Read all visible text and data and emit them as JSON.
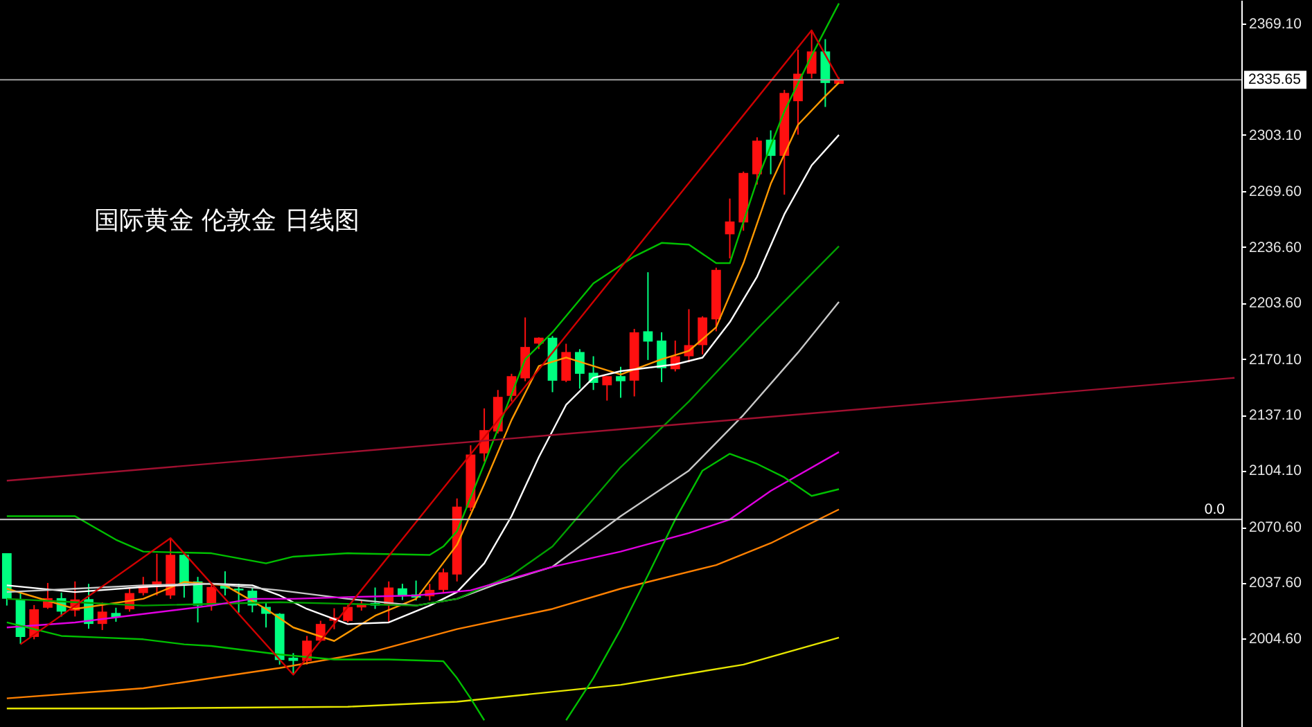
{
  "chart_data": {
    "type": "candlestick",
    "title": "国际黄金 伦敦金 日线图",
    "tick_labels": "y",
    "categories": [
      null,
      null,
      null,
      null,
      null,
      null,
      null,
      null,
      null,
      null,
      null,
      null,
      null,
      null,
      null,
      null,
      null,
      null,
      null,
      null,
      null,
      null,
      null,
      null,
      null,
      null,
      null,
      null,
      null,
      null,
      null,
      null,
      null,
      null,
      null,
      null,
      null,
      null,
      null,
      null,
      null,
      null,
      null,
      null,
      null,
      null,
      null,
      null,
      null,
      null,
      null,
      null,
      null,
      null,
      null,
      null,
      null,
      null,
      null,
      null,
      null,
      null,
      null,
      null,
      null,
      null,
      null,
      null,
      null,
      null,
      null,
      null,
      null,
      null,
      null,
      null,
      null,
      null,
      null,
      null,
      null,
      null,
      null,
      null,
      null,
      null,
      null,
      null,
      null,
      null,
      null
    ],
    "ohlc": [
      [
        2055,
        2055,
        2024,
        2028
      ],
      [
        2027.6,
        2031.7,
        2001.3,
        2005.4
      ],
      [
        2005.4,
        2024.3,
        2004,
        2021.8
      ],
      [
        2022.7,
        2037.4,
        2022,
        2028.4
      ],
      [
        2028.4,
        2031.7,
        2017.5,
        2020.4
      ],
      [
        2021,
        2038.3,
        2017.5,
        2027.6
      ],
      [
        2027.8,
        2036.9,
        2010.3,
        2013.1
      ],
      [
        2013.1,
        2025.9,
        2009.5,
        2020.4
      ],
      [
        2019.6,
        2022.7,
        2014.4,
        2016.9
      ],
      [
        2021.8,
        2034.2,
        2020.4,
        2031.4
      ],
      [
        2031.4,
        2041,
        2030,
        2036.1
      ],
      [
        2035.6,
        2054.7,
        2030,
        2038.3
      ],
      [
        2030,
        2063.5,
        2028,
        2054.1
      ],
      [
        2054.1,
        2054.7,
        2028.7,
        2036.9
      ],
      [
        2038.3,
        2041,
        2014,
        2024
      ],
      [
        2024,
        2036.9,
        2021,
        2035
      ],
      [
        2036,
        2044.3,
        2030,
        2034
      ],
      [
        2034,
        2036.9,
        2019.8,
        2033
      ],
      [
        2032.8,
        2034.7,
        2020,
        2024
      ],
      [
        2023.2,
        2026,
        2011,
        2019.1
      ],
      [
        2019.1,
        2019.5,
        1989,
        1991.7
      ],
      [
        1993.1,
        1995.8,
        1983.5,
        1991.2
      ],
      [
        1991.2,
        2006,
        1989,
        2003.2
      ],
      [
        2003.2,
        2015,
        2002.7,
        2013.1
      ],
      [
        2015,
        2022.4,
        2010,
        2016.9
      ],
      [
        2014.9,
        2024.5,
        2014,
        2023.2
      ],
      [
        2022.9,
        2027.3,
        2021,
        2025.1
      ],
      [
        2025.5,
        2034.7,
        2022,
        2024
      ],
      [
        2024.5,
        2038.3,
        2013.6,
        2034.7
      ],
      [
        2034.2,
        2036.9,
        2027.3,
        2030
      ],
      [
        2030.6,
        2038.8,
        2027,
        2028.7
      ],
      [
        2029.5,
        2036.9,
        2027,
        2033.3
      ],
      [
        2033.3,
        2045.9,
        2031.4,
        2043.7
      ],
      [
        2042.4,
        2087.5,
        2038.3,
        2082.6
      ],
      [
        2082,
        2119,
        2080,
        2113.5
      ],
      [
        2114.2,
        2140.9,
        2109.4,
        2128
      ],
      [
        2127.2,
        2151.8,
        2126,
        2147.7
      ],
      [
        2148.3,
        2161.4,
        2145,
        2160
      ],
      [
        2158.7,
        2194.8,
        2157,
        2177.3
      ],
      [
        2179.3,
        2183,
        2176,
        2182.8
      ],
      [
        2182.8,
        2183.8,
        2150.5,
        2157.3
      ],
      [
        2157.3,
        2179.2,
        2156.5,
        2174.3
      ],
      [
        2174.3,
        2176,
        2152.6,
        2161.4
      ],
      [
        2162,
        2171.8,
        2151.8,
        2156
      ],
      [
        2154.6,
        2160,
        2145.5,
        2160
      ],
      [
        2160,
        2165.5,
        2147.2,
        2157
      ],
      [
        2157.3,
        2188,
        2148,
        2186
      ],
      [
        2186.6,
        2221.6,
        2169.6,
        2180.5
      ],
      [
        2181.1,
        2186,
        2156.5,
        2164.7
      ],
      [
        2164.1,
        2181.1,
        2162.8,
        2171.8
      ],
      [
        2171.8,
        2199.7,
        2168.2,
        2178.4
      ],
      [
        2178.4,
        2195.5,
        2172.9,
        2194.8
      ],
      [
        2193.7,
        2224.3,
        2186.6,
        2223
      ],
      [
        2244.1,
        2265.3,
        2229.8,
        2251.7
      ],
      [
        2251.1,
        2281.3,
        2246.2,
        2280.5
      ],
      [
        2279.7,
        2301.6,
        2273.6,
        2299.6
      ],
      [
        2300.2,
        2305.7,
        2279.7,
        2290.6
      ],
      [
        2290.6,
        2329.7,
        2267.6,
        2327.9
      ],
      [
        2323,
        2353.5,
        2303.2,
        2339.3
      ],
      [
        2339.3,
        2365.3,
        2336.5,
        2352.5
      ],
      [
        2352.5,
        2359.8,
        2319.6,
        2333.8
      ],
      [
        2333.3,
        2337.1,
        2333.3,
        2335.65
      ],
      null,
      null,
      null,
      null,
      null,
      null,
      null,
      null,
      null,
      null,
      null,
      null,
      null,
      null,
      null,
      null,
      null,
      null,
      null,
      null,
      null,
      null,
      null,
      null,
      null,
      null,
      null,
      null,
      null
    ],
    "colors": [
      "#00ff80",
      "#00ff80",
      "#ff1010",
      "#ff1010",
      "#00ff80",
      "#ff1010",
      "#00ff80",
      "#ff1010",
      "#00ff80",
      "#ff1010",
      "#ff1010",
      "#ff1010",
      "#ff1010",
      "#00ff80",
      "#00ff80",
      "#ff1010",
      "#00ff80",
      "#00ff80",
      "#00ff80",
      "#00ff80",
      "#00ff80",
      "#00ff80",
      "#ff1010",
      "#ff1010",
      "#ff1010",
      "#ff1010",
      "#ff1010",
      "#00ff80",
      "#ff1010",
      "#00ff80",
      "#00ff80",
      "#ff1010",
      "#ff1010",
      "#ff1010",
      "#ff1010",
      "#ff1010",
      "#ff1010",
      "#ff1010",
      "#ff1010",
      "#ff1010",
      "#00ff80",
      "#ff1010",
      "#00ff80",
      "#00ff80",
      "#ff1010",
      "#00ff80",
      "#ff1010",
      "#00ff80",
      "#00ff80",
      "#ff1010",
      "#ff1010",
      "#ff1010",
      "#ff1010",
      "#ff1010",
      "#ff1010",
      "#ff1010",
      "#00ff80",
      "#ff1010",
      "#ff1010",
      "#ff1010",
      "#00ff80",
      "#ff1010",
      null,
      null,
      null,
      null,
      null,
      null,
      null,
      null,
      null,
      null,
      null,
      null,
      null,
      null,
      null,
      null,
      null,
      null,
      null,
      null,
      null,
      null,
      null,
      null,
      null,
      null,
      null,
      null,
      null
    ],
    "series": [
      {
        "type": "line",
        "color": "#ff9900",
        "values": [
          2034,
          null,
          null,
          null,
          null,
          2022,
          null,
          null,
          null,
          null,
          2028,
          null,
          null,
          2038,
          null,
          null,
          2036,
          null,
          null,
          2022,
          null,
          2011,
          null,
          null,
          2003,
          null,
          null,
          2018,
          null,
          null,
          2028,
          null,
          null,
          2060,
          null,
          2096,
          null,
          2134,
          null,
          2166,
          null,
          2171,
          null,
          2166,
          null,
          2161,
          null,
          null,
          2170,
          null,
          2175,
          null,
          2189,
          null,
          2227,
          null,
          2274,
          null,
          2309,
          null,
          2326,
          2334,
          null,
          null,
          null,
          null,
          null,
          null,
          null,
          null,
          null,
          null,
          null,
          null,
          null,
          null,
          null,
          null,
          null,
          null,
          null,
          null,
          null,
          null,
          null,
          null,
          null,
          null,
          null,
          null,
          null
        ]
      },
      {
        "type": "line",
        "color": "#ffffff",
        "values": [
          2036,
          null,
          null,
          null,
          null,
          2032,
          null,
          null,
          null,
          null,
          2035,
          null,
          null,
          null,
          null,
          2037,
          null,
          null,
          2036,
          null,
          2030,
          null,
          2022,
          null,
          null,
          2013,
          null,
          null,
          2014,
          null,
          null,
          2024,
          null,
          2032,
          null,
          2049,
          null,
          2077,
          null,
          2112,
          null,
          2143,
          null,
          2159,
          null,
          2163,
          null,
          null,
          null,
          2167,
          null,
          2171,
          null,
          2192,
          null,
          2219,
          null,
          2256,
          null,
          2285,
          null,
          2303,
          null,
          null,
          null,
          null,
          null,
          null,
          null,
          null,
          null,
          null,
          null,
          null,
          null,
          null,
          null,
          null,
          null,
          null,
          null,
          null,
          null,
          null,
          null,
          null,
          null,
          null,
          null,
          null,
          null
        ]
      },
      {
        "type": "line",
        "color": "#c8c8c8",
        "values": [
          2032,
          null,
          null,
          null,
          null,
          2034,
          null,
          null,
          null,
          null,
          2036,
          null,
          null,
          null,
          null,
          2037,
          null,
          null,
          null,
          null,
          2033,
          null,
          null,
          null,
          null,
          2028,
          null,
          null,
          null,
          null,
          2024,
          null,
          null,
          2028,
          null,
          null,
          2037,
          null,
          null,
          null,
          2047,
          null,
          null,
          null,
          null,
          2077,
          null,
          null,
          null,
          null,
          2104,
          null,
          null,
          null,
          2137,
          null,
          null,
          null,
          2174,
          null,
          null,
          2204,
          null,
          null,
          null,
          null,
          null,
          null,
          null,
          null,
          null,
          null,
          null,
          null,
          null,
          null,
          null,
          null,
          null,
          null,
          null,
          null,
          null,
          null,
          null,
          null,
          null,
          null,
          null,
          null,
          null
        ]
      },
      {
        "type": "line",
        "color": "#00a000",
        "values": [
          2028,
          null,
          null,
          null,
          null,
          2026,
          null,
          null,
          null,
          null,
          2024,
          null,
          null,
          null,
          null,
          null,
          null,
          null,
          null,
          null,
          2026,
          null,
          null,
          null,
          null,
          null,
          null,
          null,
          null,
          null,
          2024,
          null,
          null,
          2028,
          null,
          null,
          null,
          2042,
          null,
          null,
          2059,
          null,
          null,
          null,
          null,
          2106,
          null,
          null,
          null,
          null,
          2145,
          null,
          null,
          null,
          null,
          2188,
          null,
          null,
          null,
          null,
          null,
          2237,
          null,
          null,
          null,
          null,
          null,
          null,
          null,
          null,
          null,
          null,
          null,
          null,
          null,
          null,
          null,
          null,
          null,
          null,
          null,
          null,
          null,
          null,
          null,
          null,
          null,
          null,
          null,
          null,
          null
        ]
      },
      {
        "type": "line",
        "color": "#e000e0",
        "values": [
          2011,
          null,
          null,
          null,
          null,
          2014,
          null,
          null,
          null,
          null,
          2019,
          null,
          null,
          null,
          null,
          2024,
          null,
          null,
          2028,
          null,
          null,
          2028,
          null,
          null,
          null,
          2029,
          null,
          null,
          null,
          null,
          2030,
          null,
          null,
          null,
          2033,
          null,
          null,
          null,
          null,
          null,
          2047,
          null,
          null,
          null,
          null,
          2056,
          null,
          null,
          null,
          null,
          2067,
          null,
          null,
          2075,
          null,
          null,
          2092,
          null,
          null,
          null,
          null,
          2115,
          null,
          null,
          null,
          null,
          null,
          null,
          null,
          null,
          null,
          null,
          null,
          null,
          null,
          null,
          null,
          null,
          null,
          null,
          null,
          null,
          null,
          null,
          null,
          null,
          null,
          null,
          null,
          null,
          null
        ]
      },
      {
        "type": "line",
        "color": "#ff8000",
        "values": [
          1969,
          null,
          null,
          null,
          null,
          null,
          null,
          null,
          null,
          null,
          1975,
          null,
          null,
          null,
          null,
          null,
          null,
          null,
          null,
          null,
          1987,
          null,
          null,
          null,
          null,
          null,
          null,
          1997,
          null,
          null,
          null,
          null,
          null,
          2010,
          null,
          null,
          null,
          null,
          null,
          null,
          2022,
          null,
          null,
          null,
          null,
          2034,
          null,
          null,
          null,
          null,
          null,
          null,
          2048,
          null,
          null,
          null,
          2061,
          null,
          null,
          null,
          null,
          2081,
          null,
          null,
          null,
          null,
          null,
          null,
          null,
          null,
          null,
          null,
          null,
          null,
          null,
          null,
          null,
          null,
          null,
          null,
          null,
          null,
          null,
          null,
          null,
          null,
          null,
          null,
          null,
          null,
          null
        ]
      },
      {
        "type": "line",
        "color": "#e6e600",
        "values": [
          1963,
          null,
          null,
          null,
          null,
          null,
          null,
          null,
          null,
          null,
          1963,
          null,
          null,
          null,
          null,
          null,
          null,
          null,
          null,
          null,
          null,
          null,
          null,
          null,
          null,
          1964,
          null,
          null,
          null,
          null,
          null,
          null,
          null,
          1967,
          null,
          null,
          null,
          null,
          null,
          null,
          null,
          null,
          null,
          null,
          null,
          1977,
          null,
          null,
          null,
          null,
          null,
          null,
          null,
          null,
          1989,
          null,
          null,
          null,
          null,
          null,
          null,
          2005,
          null,
          null,
          null,
          null,
          null,
          null,
          null,
          null,
          null,
          null,
          null,
          null,
          null,
          null,
          null,
          null,
          null,
          null,
          null,
          null,
          null,
          null,
          null,
          null,
          null,
          null,
          null,
          null,
          null
        ]
      },
      {
        "type": "line",
        "color": "#00c000",
        "values": [
          2077,
          null,
          null,
          null,
          null,
          2077,
          null,
          null,
          2063,
          null,
          2056,
          null,
          null,
          null,
          null,
          2055,
          null,
          null,
          null,
          2049,
          null,
          2053,
          null,
          null,
          null,
          2055,
          null,
          null,
          null,
          null,
          null,
          2054,
          2059,
          2068,
          null,
          2108,
          null,
          null,
          2170,
          null,
          2186,
          null,
          null,
          2215,
          null,
          null,
          2231,
          null,
          2239,
          null,
          2238,
          null,
          2227,
          2227,
          null,
          2276,
          null,
          2317,
          null,
          2350,
          null,
          2381,
          null,
          null,
          null,
          null,
          null,
          null,
          null,
          null,
          null,
          null,
          null,
          null,
          null,
          null,
          null,
          null,
          null,
          null,
          null,
          null,
          null,
          null,
          null,
          null,
          null,
          null,
          null,
          null,
          null
        ]
      },
      {
        "type": "line",
        "color": "#00c000",
        "values": [
          2014,
          null,
          2010,
          null,
          2006,
          null,
          null,
          2005,
          null,
          null,
          2004,
          null,
          null,
          2001,
          null,
          2000,
          null,
          null,
          null,
          null,
          1995,
          null,
          null,
          null,
          1992,
          null,
          null,
          null,
          1992,
          null,
          null,
          null,
          1991,
          1981,
          1969,
          1956,
          null,
          null,
          null,
          null,
          null,
          null,
          null,
          null,
          null,
          null,
          null,
          null,
          null,
          null,
          null,
          null,
          null,
          null,
          null,
          null,
          null,
          null,
          null,
          null,
          null,
          null,
          null,
          null,
          null,
          null,
          null,
          null,
          null,
          null,
          null,
          null,
          null,
          null,
          null,
          null,
          null,
          null,
          null,
          null,
          null,
          null,
          null,
          null,
          null,
          null,
          null,
          null,
          null,
          null,
          null
        ]
      },
      {
        "type": "line",
        "color": "#00c000",
        "values": [
          null,
          null,
          null,
          null,
          null,
          null,
          null,
          null,
          null,
          null,
          null,
          null,
          null,
          null,
          null,
          null,
          null,
          null,
          null,
          null,
          null,
          null,
          null,
          null,
          null,
          null,
          null,
          null,
          null,
          null,
          null,
          null,
          null,
          null,
          null,
          null,
          null,
          null,
          null,
          null,
          null,
          1956,
          null,
          1981,
          null,
          2010,
          null,
          2042,
          null,
          2075,
          null,
          2104,
          null,
          2114,
          null,
          2108,
          null,
          2100,
          null,
          2089,
          null,
          2093,
          null,
          null,
          null,
          null,
          null,
          null,
          null,
          null,
          null,
          null,
          null,
          null,
          null,
          null,
          null,
          null,
          null,
          null,
          null,
          null,
          null,
          null,
          null,
          null,
          null,
          null,
          null,
          null,
          null
        ]
      },
      {
        "type": "line",
        "color": "#d00000",
        "values": [
          null,
          2001,
          null,
          null,
          null,
          null,
          null,
          null,
          null,
          null,
          null,
          null,
          2064,
          null,
          null,
          null,
          null,
          null,
          null,
          null,
          null,
          1983,
          null,
          null,
          null,
          null,
          null,
          null,
          null,
          null,
          null,
          null,
          null,
          null,
          null,
          null,
          null,
          null,
          null,
          null,
          null,
          null,
          null,
          null,
          null,
          null,
          null,
          null,
          null,
          null,
          null,
          null,
          null,
          null,
          null,
          null,
          null,
          null,
          null,
          2365,
          null,
          2336,
          null,
          null,
          null,
          null,
          null,
          null,
          null,
          null,
          null,
          null,
          null,
          null,
          null,
          null,
          null,
          null,
          null,
          null,
          null,
          null,
          null,
          null,
          null,
          null,
          null,
          null,
          null,
          null,
          null
        ]
      },
      {
        "type": "line",
        "color": "#a01030",
        "values": [
          2098,
          null,
          null,
          null,
          null,
          null,
          null,
          null,
          null,
          null,
          null,
          null,
          null,
          null,
          null,
          null,
          null,
          null,
          null,
          null,
          null,
          null,
          null,
          null,
          null,
          null,
          null,
          null,
          null,
          null,
          null,
          null,
          null,
          null,
          null,
          null,
          null,
          null,
          null,
          null,
          null,
          null,
          null,
          null,
          null,
          null,
          null,
          null,
          null,
          null,
          null,
          null,
          null,
          null,
          null,
          null,
          null,
          null,
          null,
          null,
          null,
          null,
          null,
          null,
          null,
          null,
          null,
          null,
          null,
          null,
          null,
          null,
          null,
          null,
          null,
          null,
          null,
          null,
          null,
          null,
          null,
          null,
          null,
          null,
          null,
          null,
          null,
          null,
          null,
          null,
          2159
        ]
      }
    ],
    "ref_lines": [
      {
        "axis": "y",
        "value": 2335.65,
        "label": "2335.65",
        "color": "#a0a0a0"
      },
      {
        "axis": "y",
        "value": 2075,
        "color": "#d0d0d0"
      }
    ],
    "annotations": [
      {
        "text": "0.0",
        "y": 2075
      }
    ],
    "ylim": [
      1952,
      2383
    ],
    "yticks": [
      {
        "value": 2004.6,
        "label": "2004.60"
      },
      {
        "value": 2037.6,
        "label": "2037.60"
      },
      {
        "value": 2070.6,
        "label": "2070.60"
      },
      {
        "value": 2104.1,
        "label": "2104.10"
      },
      {
        "value": 2137.1,
        "label": "2137.10"
      },
      {
        "value": 2170.1,
        "label": "2170.10"
      },
      {
        "value": 2203.6,
        "label": "2203.60"
      },
      {
        "value": 2236.6,
        "label": "2236.60"
      },
      {
        "value": 2269.6,
        "label": "2269.60"
      },
      {
        "value": 2303.1,
        "label": "2303.10"
      },
      {
        "value": 2369.1,
        "label": "2369.10"
      }
    ]
  }
}
